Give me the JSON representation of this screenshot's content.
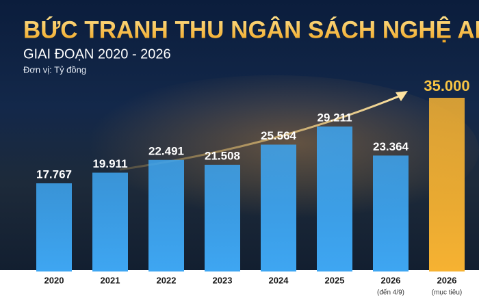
{
  "chart_data": {
    "type": "bar",
    "title": "BỨC TRANH THU NGÂN SÁCH NGHỆ AN",
    "subtitle": "GIAI ĐOẠN 2020 - 2026",
    "unit_note": "Đơn vị: Tỷ đồng",
    "categories": [
      "2020",
      "2021",
      "2022",
      "2023",
      "2024",
      "2025",
      "2026",
      "2026"
    ],
    "category_notes": [
      null,
      null,
      null,
      null,
      null,
      null,
      "(đến 4/9)",
      "(mục tiêu)"
    ],
    "values": [
      17767,
      19911,
      22491,
      21508,
      25564,
      29211,
      23364,
      35000
    ],
    "value_labels": [
      "17.767",
      "19.911",
      "22.491",
      "21.508",
      "25.564",
      "29.211",
      "23.364",
      "35.000"
    ],
    "colors": [
      "#3ea6f2",
      "#3ea6f2",
      "#3ea6f2",
      "#3ea6f2",
      "#3ea6f2",
      "#3ea6f2",
      "#3ea6f2",
      "#f6b232"
    ],
    "value_label_colors": [
      "#ffffff",
      "#ffffff",
      "#ffffff",
      "#ffffff",
      "#ffffff",
      "#ffffff",
      "#ffffff",
      "#f8c443"
    ],
    "ylim": [
      0,
      35000
    ]
  }
}
